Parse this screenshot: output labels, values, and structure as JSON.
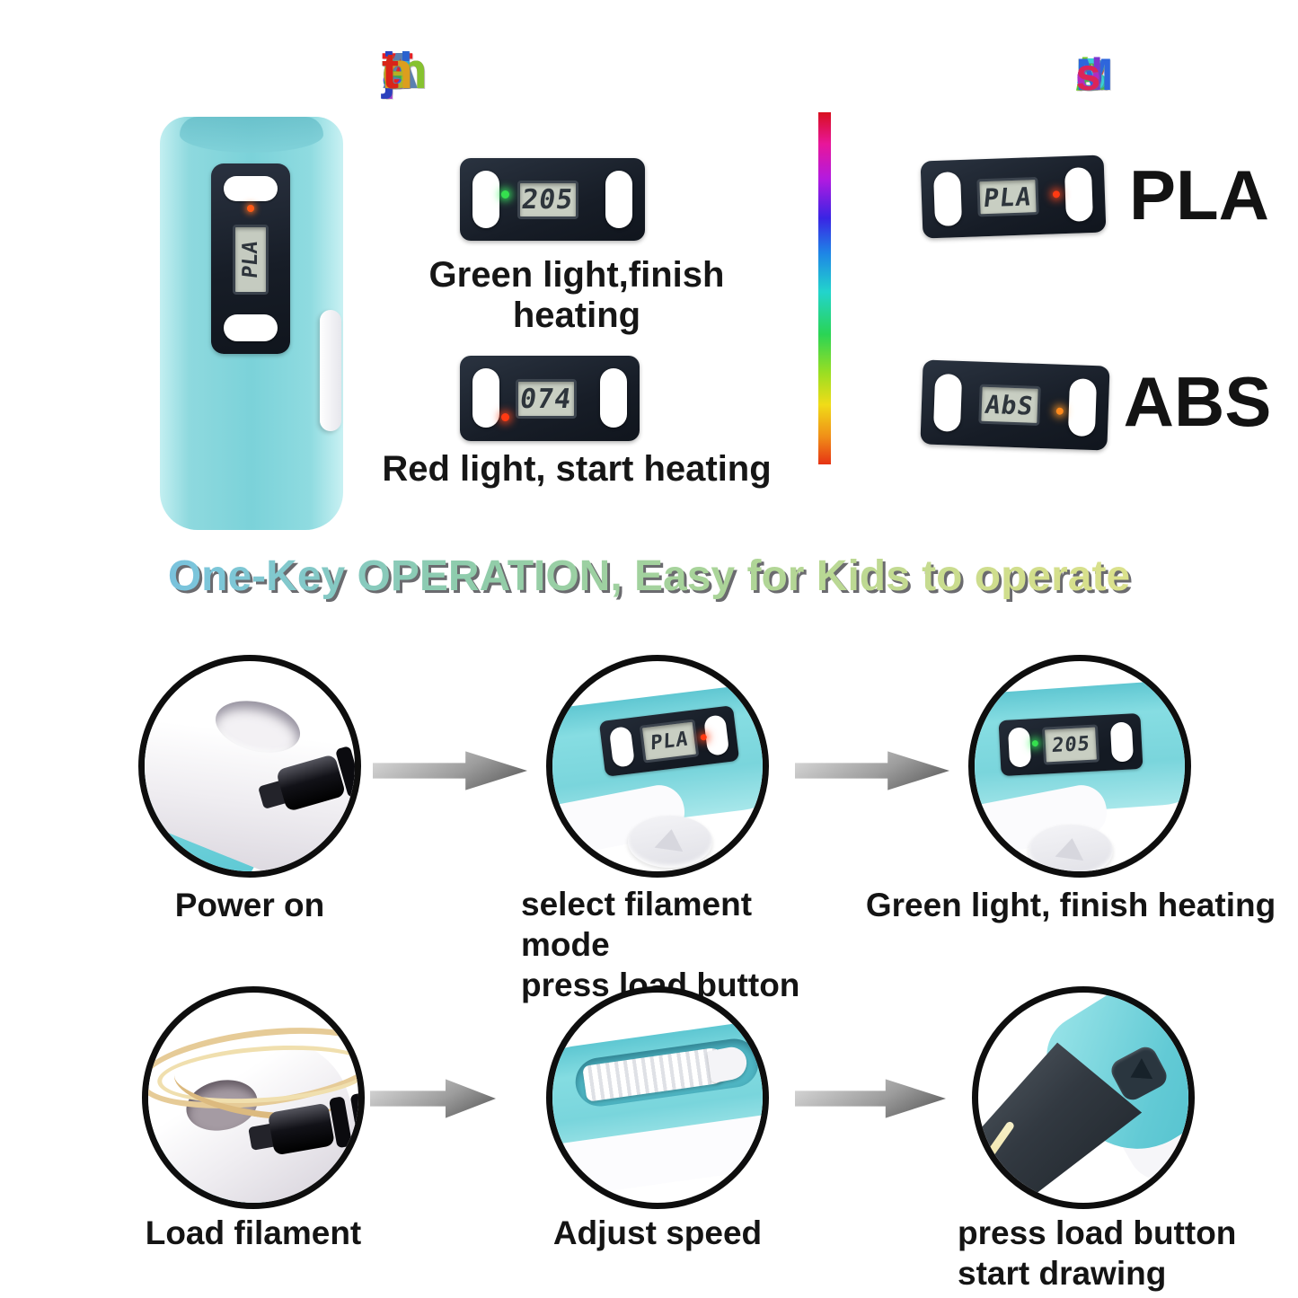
{
  "titles": {
    "temperature": {
      "text": "Temperature Adjustment",
      "colors": [
        "#e81e25",
        "#e5308e",
        "#d02fc0",
        "#ab32d8",
        "#8838e0",
        "#6b40e2",
        "#4b49e2",
        "#3356de",
        "#2e72e0",
        "#379fe4",
        "#3fc3e8",
        null,
        "#5b80b0",
        "#2a62cf",
        "#2b40bd",
        "#35a8d2",
        "#2fae57",
        "#38b52d",
        "#86c22f",
        "#b5b125",
        "#dc9e1e",
        "#d92418"
      ]
    },
    "modes": {
      "text": "PLA/ABS Modes",
      "colors": [
        "#e8431c",
        "#eeb816",
        "#bcd822",
        "#76cc2a",
        "#3dc244",
        "#2fc8aa",
        "#36d0d8",
        null,
        "#2e66dc",
        "#4b45d8",
        "#7c36d0",
        "#b02cc2",
        "#dc2458"
      ]
    },
    "one_key": "One-Key OPERATION, Easy for Kids to operate"
  },
  "temperature_section": {
    "pen_lcd": "PLA",
    "displays": [
      {
        "lcd": "205",
        "led": "green",
        "caption": "Green light,finish heating"
      },
      {
        "lcd": "074",
        "led": "red",
        "caption": "Red light, start heating"
      }
    ]
  },
  "modes_section": {
    "items": [
      {
        "lcd": "PLA",
        "led": "red",
        "label": "PLA"
      },
      {
        "lcd": "AbS",
        "led": "orange",
        "label": "ABS"
      }
    ]
  },
  "steps": {
    "row1": [
      {
        "caption": "Power on"
      },
      {
        "lcd": "PLA",
        "led": "red",
        "caption_line1": "select filament mode",
        "caption_line2": "press load button"
      },
      {
        "lcd": "205",
        "led": "green",
        "caption": "Green light, finish heating"
      }
    ],
    "row2": [
      {
        "caption": "Load filament"
      },
      {
        "caption": "Adjust speed"
      },
      {
        "caption_line1": "press load button",
        "caption_line2": "start drawing"
      }
    ]
  },
  "colors": {
    "pen_blue": "#7ad5dc",
    "panel_dark": "#1a212c",
    "lcd_bg": "#c8cec2",
    "led_green": "#35e04e",
    "led_red": "#ff3a12",
    "led_orange": "#ff8a1c"
  }
}
